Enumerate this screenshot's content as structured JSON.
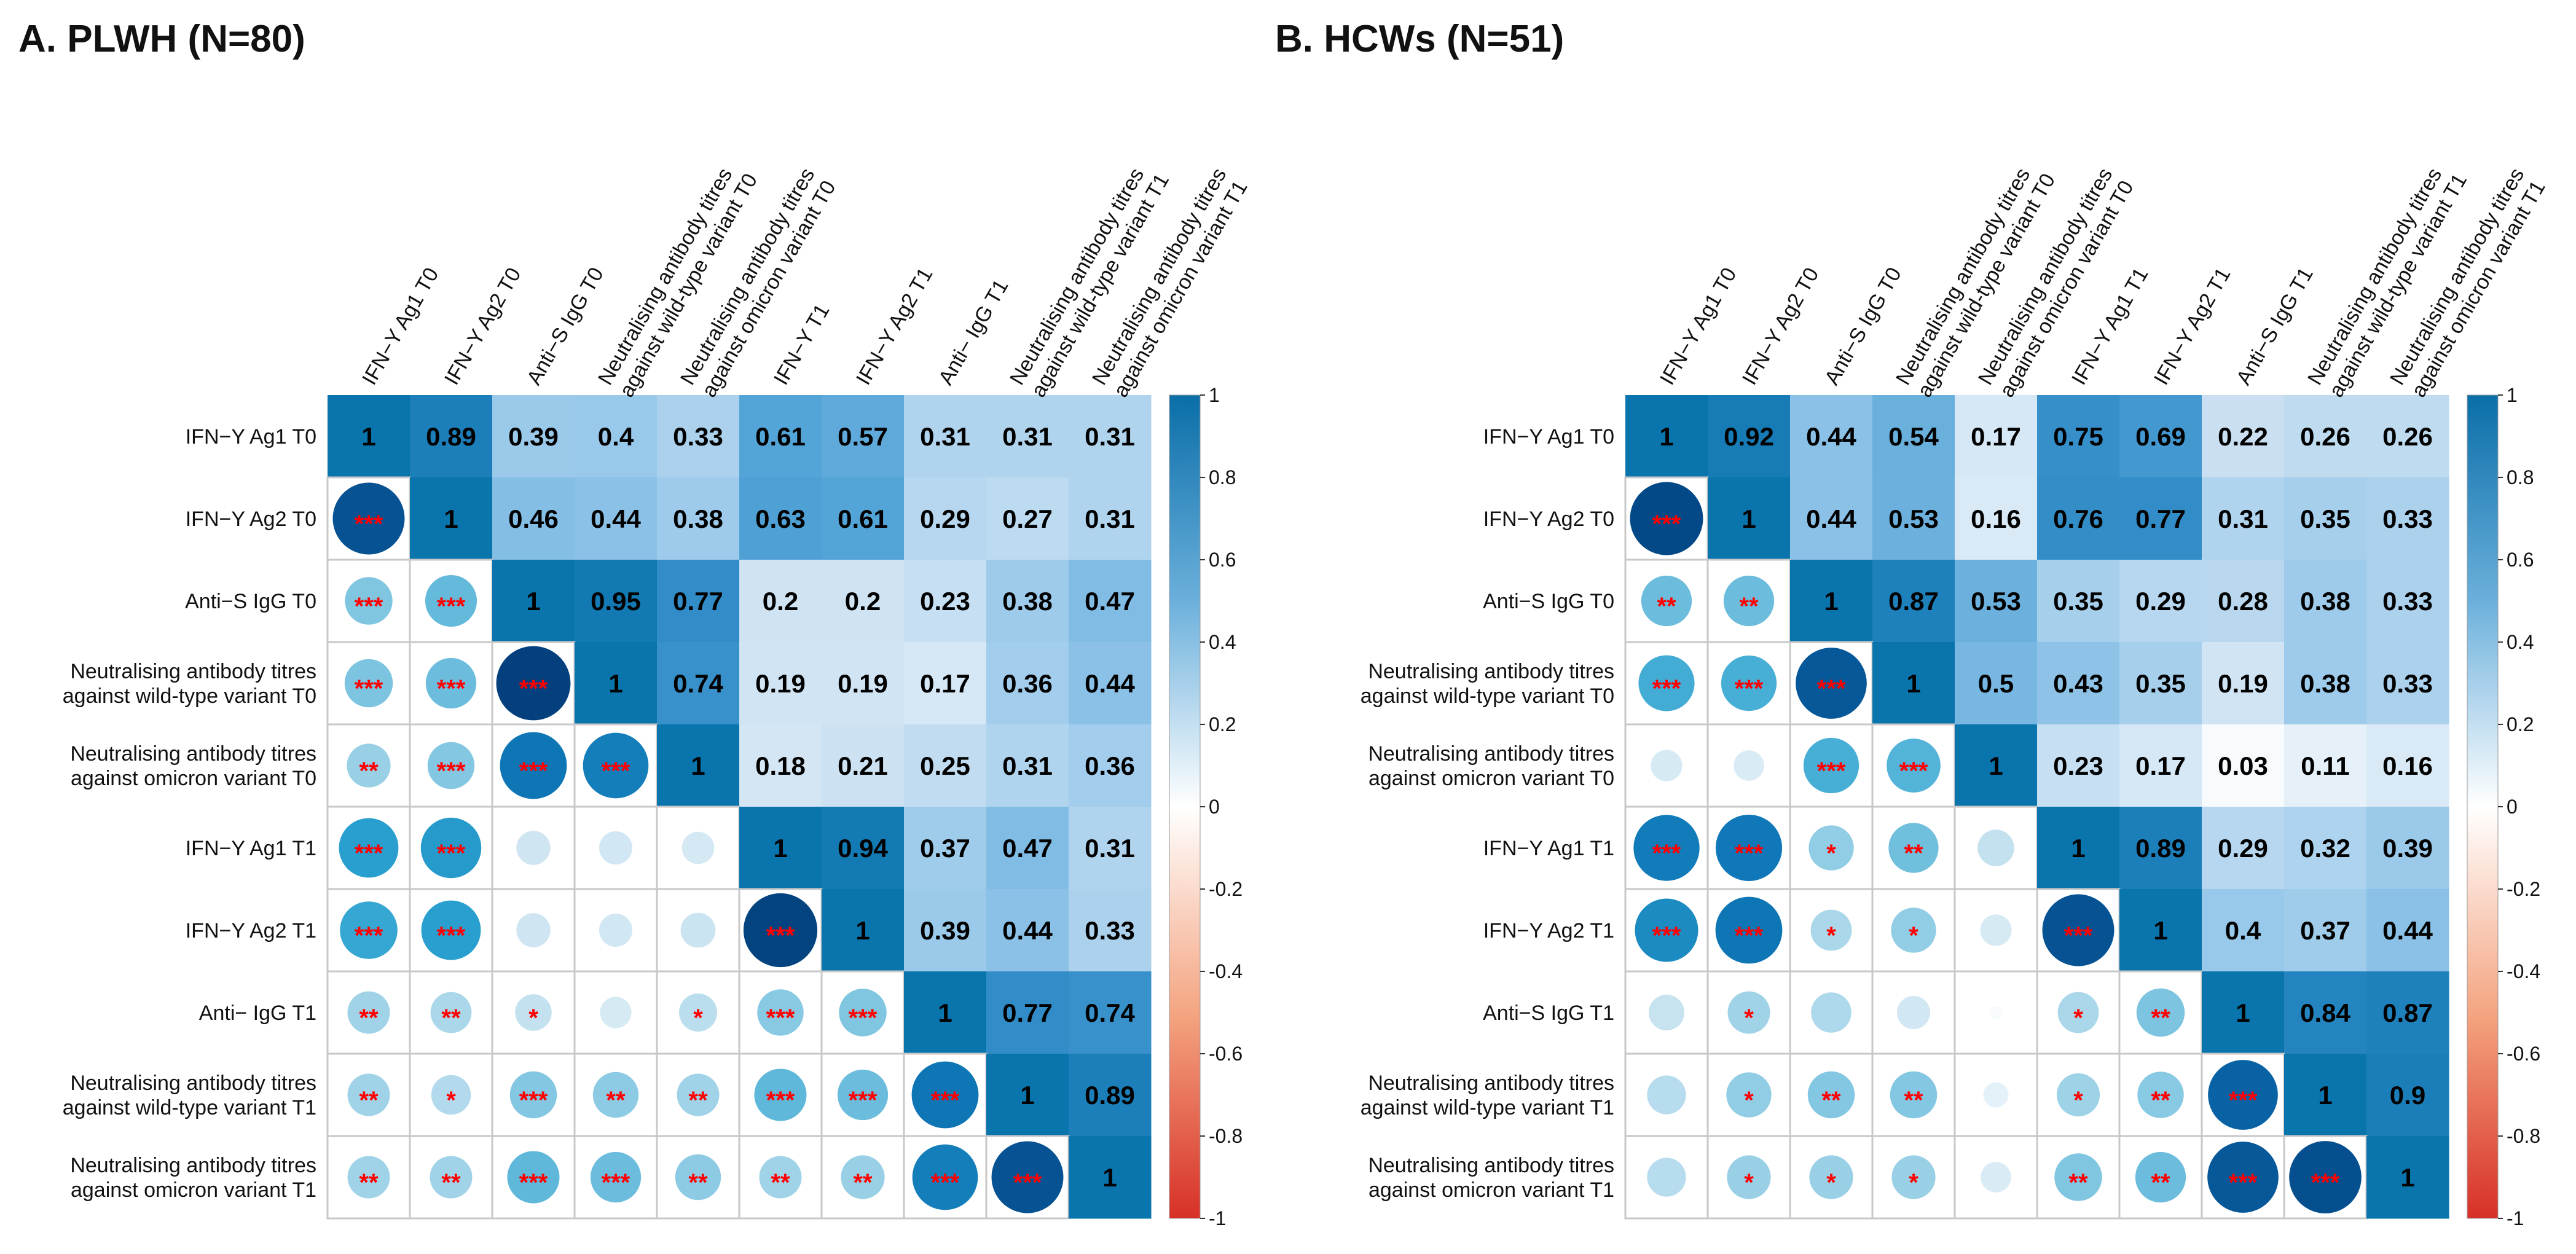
{
  "chart_data": [
    {
      "type": "heatmap",
      "title": "A. PLWH (N=80)",
      "col_labels": [
        "IFN−Y Ag1 T0",
        "IFN−Y Ag2 T0",
        "Anti−S IgG T0",
        "Neutralising antibody titres\nagainst wild-type variant T0",
        "Neutralising antibody titres\nagainst omicron variant T0",
        "IFN−Y T1",
        "IFN−Y Ag2 T1",
        "Anti− IgG T1",
        "Neutralising antibody titres\nagainst wild-type variant T1",
        "Neutralising antibody titres\nagainst omicron variant T1"
      ],
      "row_labels": [
        "IFN−Y Ag1 T0",
        "IFN−Y Ag2 T0",
        "Anti−S IgG T0",
        "Neutralising antibody titres\nagainst wild-type variant T0",
        "Neutralising antibody titres\nagainst omicron variant T0",
        "IFN−Y Ag1 T1",
        "IFN−Y Ag2 T1",
        "Anti− IgG T1",
        "Neutralising antibody titres\nagainst wild-type variant T1",
        "Neutralising antibody titres\nagainst omicron variant T1"
      ],
      "upper_values": [
        [
          "1",
          "0.89",
          "0.39",
          "0.4",
          "0.33",
          "0.61",
          "0.57",
          "0.31",
          "0.31",
          "0.31"
        ],
        [
          "1",
          "0.46",
          "0.44",
          "0.38",
          "0.63",
          "0.61",
          "0.29",
          "0.27",
          "0.31"
        ],
        [
          "1",
          "0.95",
          "0.77",
          "0.2",
          "0.2",
          "0.23",
          "0.38",
          "0.47"
        ],
        [
          "1",
          "0.74",
          "0.19",
          "0.19",
          "0.17",
          "0.36",
          "0.44"
        ],
        [
          "1",
          "0.18",
          "0.21",
          "0.25",
          "0.31",
          "0.36"
        ],
        [
          "1",
          "0.94",
          "0.37",
          "0.47",
          "0.31"
        ],
        [
          "1",
          "0.39",
          "0.44",
          "0.33"
        ],
        [
          "1",
          "0.77",
          "0.74"
        ],
        [
          "1",
          "0.89"
        ],
        [
          "1"
        ]
      ],
      "lower_significance": [
        [],
        [
          "***"
        ],
        [
          "***",
          "***"
        ],
        [
          "***",
          "***",
          "***"
        ],
        [
          "**",
          "***",
          "***",
          "***"
        ],
        [
          "***",
          "***",
          "",
          "",
          ""
        ],
        [
          "***",
          "***",
          "",
          "",
          "",
          "***"
        ],
        [
          "**",
          "**",
          "*",
          "",
          "*",
          "***",
          "***"
        ],
        [
          "**",
          "*",
          "***",
          "**",
          "**",
          "***",
          "***",
          "***"
        ],
        [
          "**",
          "**",
          "***",
          "***",
          "**",
          "**",
          "**",
          "***",
          "***"
        ]
      ],
      "colorbar": {
        "range": [
          -1,
          1
        ],
        "ticks": [
          "1",
          "0.8",
          "0.6",
          "0.4",
          "0.2",
          "0",
          "-0.2",
          "-0.4",
          "-0.6",
          "-0.8",
          "-1"
        ]
      }
    },
    {
      "type": "heatmap",
      "title": "B. HCWs (N=51)",
      "col_labels": [
        "IFN−Y Ag1 T0",
        "IFN−Y Ag2 T0",
        "Anti−S IgG T0",
        "Neutralising antibody titres\nagainst wild-type variant T0",
        "Neutralising antibody titres\nagainst omicron variant T0",
        "IFN−Y Ag1 T1",
        "IFN−Y Ag2 T1",
        "Anti−S IgG T1",
        "Neutralising antibody titres\nagainst wild-type variant T1",
        "Neutralising antibody titres\nagainst omicron variant T1"
      ],
      "row_labels": [
        "IFN−Y Ag1 T0",
        "IFN−Y Ag2 T0",
        "Anti−S IgG T0",
        "Neutralising antibody titres\nagainst wild-type variant T0",
        "Neutralising antibody titres\nagainst omicron variant T0",
        "IFN−Y Ag1 T1",
        "IFN−Y Ag2 T1",
        "Anti−S IgG T1",
        "Neutralising antibody titres\nagainst wild-type variant T1",
        "Neutralising antibody titres\nagainst omicron variant T1"
      ],
      "upper_values": [
        [
          "1",
          "0.92",
          "0.44",
          "0.54",
          "0.17",
          "0.75",
          "0.69",
          "0.22",
          "0.26",
          "0.26"
        ],
        [
          "1",
          "0.44",
          "0.53",
          "0.16",
          "0.76",
          "0.77",
          "0.31",
          "0.35",
          "0.33"
        ],
        [
          "1",
          "0.87",
          "0.53",
          "0.35",
          "0.29",
          "0.28",
          "0.38",
          "0.33"
        ],
        [
          "1",
          "0.5",
          "0.43",
          "0.35",
          "0.19",
          "0.38",
          "0.33"
        ],
        [
          "1",
          "0.23",
          "0.17",
          "0.03",
          "0.11",
          "0.16"
        ],
        [
          "1",
          "0.89",
          "0.29",
          "0.32",
          "0.39"
        ],
        [
          "1",
          "0.4",
          "0.37",
          "0.44"
        ],
        [
          "1",
          "0.84",
          "0.87"
        ],
        [
          "1",
          "0.9"
        ],
        [
          "1"
        ]
      ],
      "lower_significance": [
        [],
        [
          "***"
        ],
        [
          "**",
          "**"
        ],
        [
          "***",
          "***",
          "***"
        ],
        [
          "",
          "",
          "***",
          "***"
        ],
        [
          "***",
          "***",
          "*",
          "**",
          ""
        ],
        [
          "***",
          "***",
          "*",
          "*",
          "",
          "***"
        ],
        [
          "",
          "*",
          "",
          "",
          "",
          "*",
          "**"
        ],
        [
          "",
          "*",
          "**",
          "**",
          "",
          "*",
          "**",
          "***"
        ],
        [
          "",
          "*",
          "*",
          "*",
          "",
          "**",
          "**",
          "***",
          "***"
        ]
      ],
      "colorbar": {
        "range": [
          -1,
          1
        ],
        "ticks": [
          "1",
          "0.8",
          "0.6",
          "0.4",
          "0.2",
          "0",
          "-0.2",
          "-0.4",
          "-0.6",
          "-0.8",
          "-1"
        ]
      }
    }
  ]
}
